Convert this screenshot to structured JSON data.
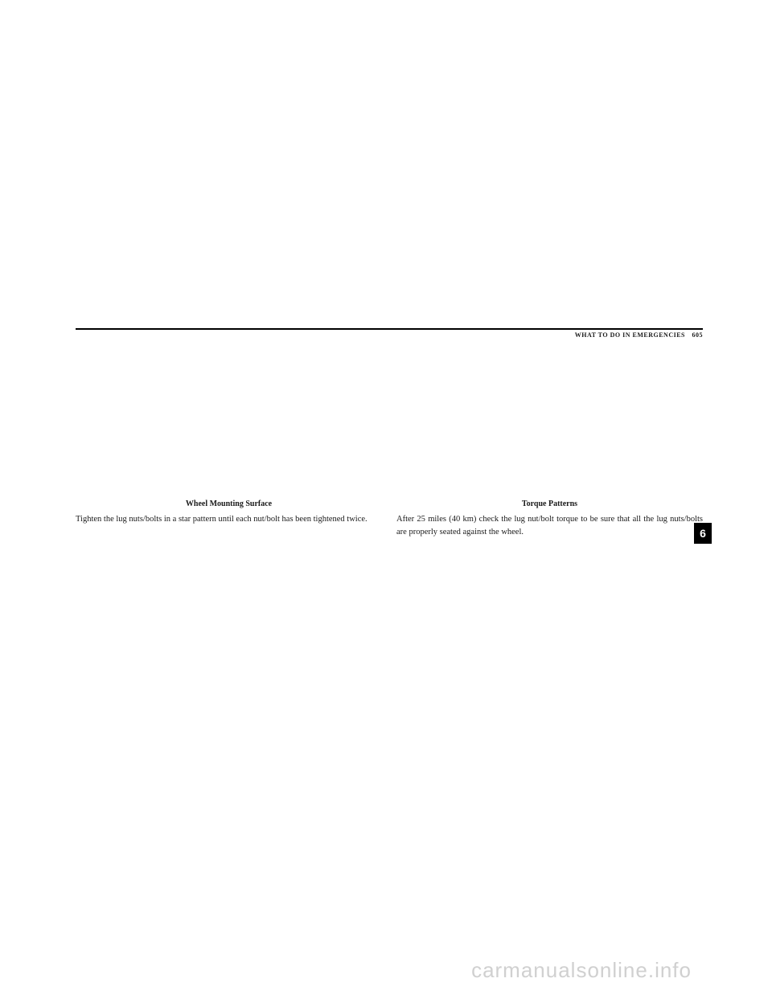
{
  "header": {
    "section_title": "WHAT TO DO IN EMERGENCIES",
    "page_number": "605"
  },
  "left_column": {
    "caption": "Wheel Mounting Surface",
    "body": "Tighten the lug nuts/bolts in a star pattern until each nut/bolt has been tightened twice."
  },
  "right_column": {
    "caption": "Torque Patterns",
    "body": "After 25 miles (40 km) check the lug nut/bolt torque to be sure that all the lug nuts/bolts are properly seated against the wheel."
  },
  "section_tab": "6",
  "watermark": "carmanualsonline.info",
  "colors": {
    "text": "#1a1a1a",
    "rule": "#000000",
    "tab_bg": "#000000",
    "tab_fg": "#ffffff",
    "watermark": "#d0d0d0",
    "background": "#ffffff"
  }
}
